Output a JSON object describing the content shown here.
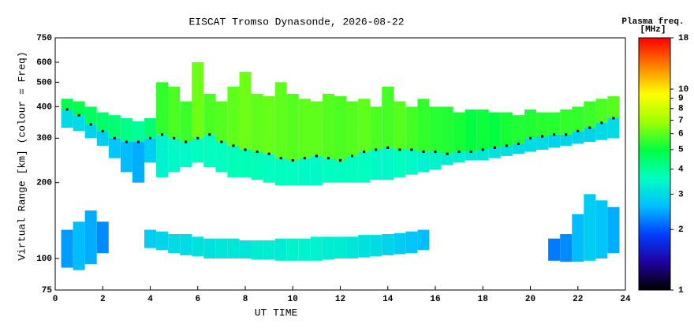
{
  "chart_data": {
    "type": "range-time",
    "title": "EISCAT Tromso Dynasonde, 2026-08-22",
    "xlabel": "UT TIME",
    "ylabel": "Virtual Range [km] (colour = Freq)",
    "colorbar_label": [
      "Plasma freq.",
      "[MHz]"
    ],
    "xlim": [
      0,
      24
    ],
    "xticks": [
      0,
      2,
      4,
      6,
      8,
      10,
      12,
      14,
      16,
      18,
      20,
      22,
      24
    ],
    "ylim": [
      75,
      750
    ],
    "yticks": [
      75,
      100,
      200,
      300,
      400,
      500,
      600,
      750
    ],
    "yscale": "log",
    "zlim": [
      1,
      18
    ],
    "zticks": [
      1,
      2,
      3,
      4,
      5,
      6,
      7,
      8,
      9,
      10,
      18
    ],
    "zscale": "log",
    "colormap": [
      "#000000",
      "#2000a0",
      "#0040ff",
      "#00c0ff",
      "#00ffc0",
      "#00ff40",
      "#a0ff00",
      "#ffff00",
      "#ff8000",
      "#ff0000"
    ],
    "echoes": {
      "x": [
        0.5,
        1,
        1.5,
        2,
        2.5,
        3,
        3.5,
        4,
        4.5,
        5,
        5.5,
        6,
        6.5,
        7,
        7.5,
        8,
        8.5,
        9,
        9.5,
        10,
        10.5,
        11,
        11.5,
        12,
        12.5,
        13,
        13.5,
        14,
        14.5,
        15,
        15.5,
        16,
        16.5,
        17,
        17.5,
        18,
        18.5,
        19,
        19.5,
        20,
        20.5,
        21,
        21.5,
        22,
        22.5,
        23,
        23.5,
        0.5,
        1,
        1.5,
        2,
        2.5,
        3,
        3.5,
        4,
        4.5,
        5,
        5.5,
        6,
        6.5,
        7,
        7.5,
        8,
        8.5,
        9,
        9.5,
        10,
        10.5,
        11,
        11.5,
        12,
        12.5,
        13,
        13.5,
        14,
        14.5,
        15,
        15.5,
        16,
        16.5,
        17,
        17.5,
        18,
        18.5,
        19,
        19.5,
        20,
        20.5,
        21,
        21.5,
        22,
        22.5,
        23,
        23.5,
        0.5,
        1,
        1.5,
        2,
        4,
        4.5,
        5,
        5.5,
        6,
        6.5,
        7,
        7.5,
        8,
        8.5,
        9,
        9.5,
        10,
        10.5,
        11,
        11.5,
        12,
        12.5,
        13,
        13.5,
        14,
        14.5,
        15,
        15.5,
        21,
        21.5,
        22,
        22.5,
        23,
        23.5
      ],
      "ylow": [
        330,
        320,
        300,
        280,
        250,
        220,
        200,
        240,
        210,
        220,
        230,
        240,
        230,
        220,
        210,
        210,
        205,
        200,
        195,
        195,
        195,
        195,
        200,
        200,
        200,
        200,
        205,
        205,
        210,
        215,
        220,
        225,
        235,
        240,
        245,
        245,
        250,
        255,
        260,
        265,
        270,
        275,
        280,
        285,
        290,
        295,
        300,
        390,
        370,
        340,
        320,
        300,
        290,
        290,
        300,
        310,
        300,
        290,
        300,
        310,
        290,
        280,
        270,
        265,
        260,
        250,
        245,
        250,
        255,
        250,
        245,
        255,
        265,
        270,
        275,
        270,
        270,
        265,
        265,
        260,
        265,
        265,
        270,
        275,
        280,
        285,
        300,
        305,
        310,
        310,
        320,
        330,
        345,
        360,
        92,
        90,
        95,
        105,
        110,
        108,
        105,
        103,
        102,
        100,
        100,
        100,
        100,
        99,
        99,
        98,
        98,
        98,
        98,
        99,
        100,
        100,
        101,
        102,
        103,
        104,
        105,
        108,
        98,
        97,
        97,
        98,
        100,
        105
      ],
      "yhigh": [
        390,
        370,
        340,
        320,
        300,
        290,
        290,
        300,
        310,
        300,
        290,
        300,
        310,
        290,
        280,
        270,
        265,
        260,
        250,
        245,
        250,
        255,
        250,
        245,
        255,
        265,
        270,
        275,
        270,
        270,
        265,
        265,
        260,
        265,
        265,
        270,
        275,
        280,
        285,
        300,
        305,
        310,
        310,
        320,
        330,
        345,
        360,
        430,
        420,
        400,
        380,
        370,
        360,
        350,
        360,
        500,
        480,
        420,
        600,
        450,
        420,
        480,
        550,
        450,
        440,
        500,
        450,
        430,
        420,
        450,
        440,
        420,
        430,
        400,
        480,
        420,
        400,
        430,
        400,
        400,
        380,
        390,
        390,
        380,
        380,
        370,
        390,
        380,
        380,
        390,
        400,
        420,
        430,
        440,
        130,
        140,
        155,
        140,
        130,
        128,
        125,
        125,
        122,
        120,
        120,
        120,
        118,
        118,
        118,
        120,
        120,
        120,
        122,
        122,
        122,
        122,
        124,
        124,
        125,
        126,
        128,
        130,
        120,
        125,
        150,
        180,
        170,
        160
      ],
      "freq": [
        3.0,
        3.0,
        2.9,
        2.8,
        2.7,
        2.6,
        2.5,
        2.8,
        3.4,
        3.5,
        3.5,
        3.6,
        3.6,
        3.6,
        3.7,
        3.7,
        3.7,
        3.6,
        3.6,
        3.6,
        3.5,
        3.5,
        3.6,
        3.6,
        3.6,
        3.6,
        3.5,
        3.5,
        3.6,
        3.5,
        3.4,
        3.4,
        3.3,
        3.3,
        3.2,
        3.2,
        3.1,
        3.1,
        3.0,
        3.0,
        3.0,
        2.9,
        2.9,
        2.9,
        2.9,
        3.0,
        3.0,
        4.8,
        4.8,
        4.6,
        4.5,
        4.4,
        4.2,
        4.0,
        4.4,
        5.5,
        5.8,
        5.6,
        6.2,
        5.8,
        5.9,
        6.0,
        6.2,
        6.0,
        6.1,
        6.0,
        5.9,
        6.0,
        6.0,
        5.9,
        5.8,
        5.9,
        6.0,
        5.8,
        5.7,
        5.9,
        5.7,
        5.5,
        5.4,
        5.3,
        5.2,
        5.0,
        5.1,
        5.0,
        5.2,
        5.3,
        5.3,
        5.4,
        5.4,
        5.5,
        5.5,
        5.6,
        5.8,
        5.9,
        2.4,
        2.6,
        2.5,
        2.3,
        2.8,
        2.9,
        3.0,
        3.0,
        3.1,
        3.1,
        3.2,
        3.2,
        3.2,
        3.3,
        3.3,
        3.3,
        3.4,
        3.4,
        3.4,
        3.3,
        3.3,
        3.2,
        3.1,
        3.0,
        2.9,
        2.8,
        2.7,
        2.6,
        2.2,
        2.3,
        2.6,
        2.8,
        2.7,
        2.5
      ]
    },
    "trace": {
      "color": "#000000",
      "x": [
        0.5,
        1,
        1.5,
        2,
        2.5,
        3,
        3.5,
        4,
        4.5,
        5,
        5.5,
        6,
        6.5,
        7,
        7.5,
        8,
        8.5,
        9,
        9.5,
        10,
        10.5,
        11,
        11.5,
        12,
        12.5,
        13,
        13.5,
        14,
        14.5,
        15,
        15.5,
        16,
        16.5,
        17,
        17.5,
        18,
        18.5,
        19,
        19.5,
        20,
        20.5,
        21,
        21.5,
        22,
        22.5,
        23,
        23.5
      ],
      "y": [
        390,
        370,
        340,
        320,
        300,
        290,
        290,
        300,
        310,
        300,
        290,
        300,
        310,
        290,
        280,
        270,
        265,
        260,
        250,
        245,
        250,
        255,
        250,
        245,
        255,
        265,
        270,
        275,
        270,
        270,
        265,
        265,
        260,
        265,
        265,
        270,
        275,
        280,
        285,
        300,
        305,
        310,
        310,
        320,
        330,
        345,
        360
      ]
    }
  }
}
